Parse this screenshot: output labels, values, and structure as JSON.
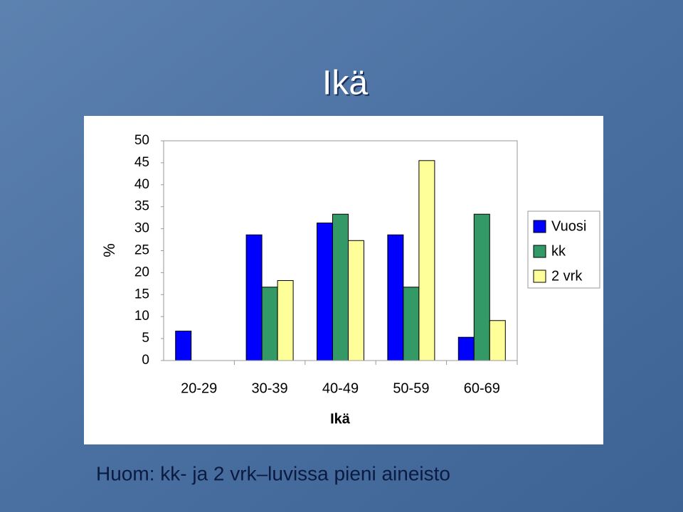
{
  "chart_data": {
    "type": "bar",
    "title": "Ikä",
    "x_label": "Ikä",
    "y_label": "%",
    "categories": [
      "20-29",
      "30-39",
      "40-49",
      "50-59",
      "60-69"
    ],
    "series": [
      {
        "name": "Vuosi",
        "color": "#0000ff",
        "values": [
          6.7,
          28.6,
          31.3,
          28.6,
          5.3
        ]
      },
      {
        "name": "kk",
        "color": "#339966",
        "values": [
          0,
          16.7,
          33.3,
          16.7,
          33.3
        ]
      },
      {
        "name": "2 vrk",
        "color": "#ffff99",
        "values": [
          0,
          18.2,
          27.3,
          45.5,
          9.1
        ]
      }
    ],
    "ylim": [
      0,
      50
    ],
    "yticks": [
      0,
      5,
      10,
      15,
      20,
      25,
      30,
      35,
      40,
      45,
      50
    ],
    "grid": false,
    "legend": "right"
  },
  "footer": "Huom: kk- ja 2 vrk–luvissa pieni aineisto"
}
